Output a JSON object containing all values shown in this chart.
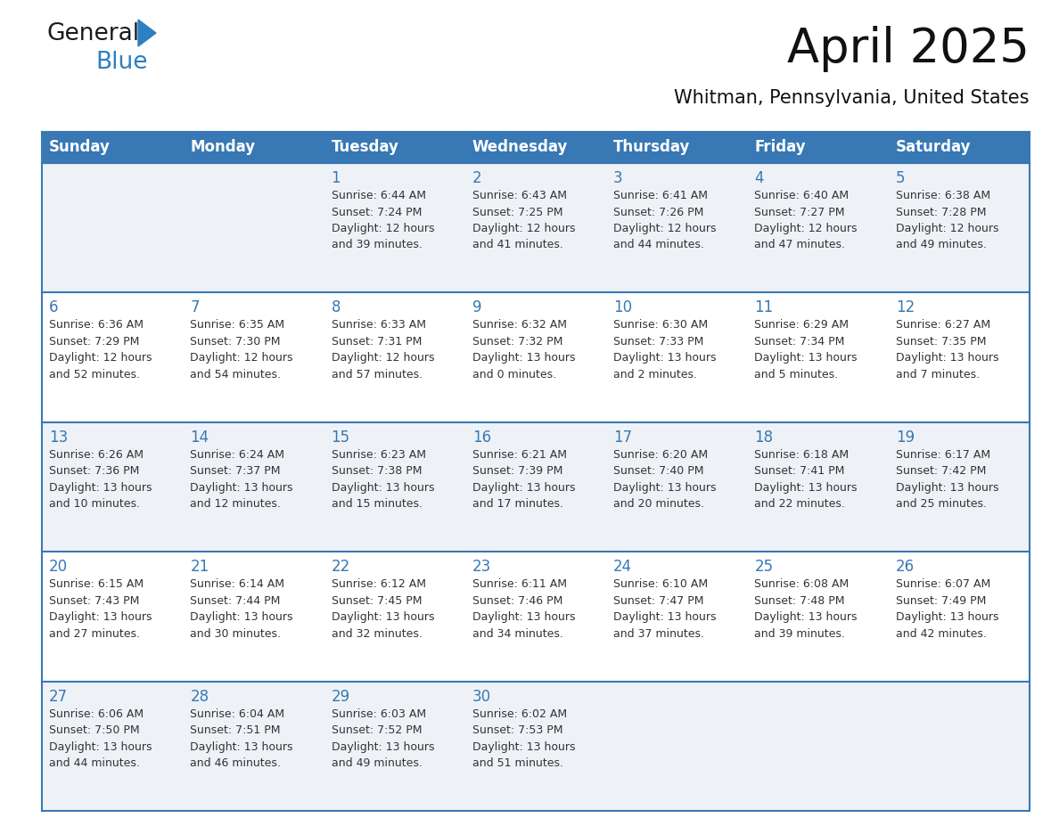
{
  "title": "April 2025",
  "subtitle": "Whitman, Pennsylvania, United States",
  "days_of_week": [
    "Sunday",
    "Monday",
    "Tuesday",
    "Wednesday",
    "Thursday",
    "Friday",
    "Saturday"
  ],
  "header_bg": "#3878b4",
  "header_text": "#ffffff",
  "row_bg_odd": "#eef2f7",
  "row_bg_even": "#ffffff",
  "border_color": "#3878b4",
  "day_number_color": "#3878b4",
  "cell_text_color": "#333333",
  "weeks": [
    [
      {
        "day": null,
        "info": null
      },
      {
        "day": null,
        "info": null
      },
      {
        "day": 1,
        "info": "Sunrise: 6:44 AM\nSunset: 7:24 PM\nDaylight: 12 hours\nand 39 minutes."
      },
      {
        "day": 2,
        "info": "Sunrise: 6:43 AM\nSunset: 7:25 PM\nDaylight: 12 hours\nand 41 minutes."
      },
      {
        "day": 3,
        "info": "Sunrise: 6:41 AM\nSunset: 7:26 PM\nDaylight: 12 hours\nand 44 minutes."
      },
      {
        "day": 4,
        "info": "Sunrise: 6:40 AM\nSunset: 7:27 PM\nDaylight: 12 hours\nand 47 minutes."
      },
      {
        "day": 5,
        "info": "Sunrise: 6:38 AM\nSunset: 7:28 PM\nDaylight: 12 hours\nand 49 minutes."
      }
    ],
    [
      {
        "day": 6,
        "info": "Sunrise: 6:36 AM\nSunset: 7:29 PM\nDaylight: 12 hours\nand 52 minutes."
      },
      {
        "day": 7,
        "info": "Sunrise: 6:35 AM\nSunset: 7:30 PM\nDaylight: 12 hours\nand 54 minutes."
      },
      {
        "day": 8,
        "info": "Sunrise: 6:33 AM\nSunset: 7:31 PM\nDaylight: 12 hours\nand 57 minutes."
      },
      {
        "day": 9,
        "info": "Sunrise: 6:32 AM\nSunset: 7:32 PM\nDaylight: 13 hours\nand 0 minutes."
      },
      {
        "day": 10,
        "info": "Sunrise: 6:30 AM\nSunset: 7:33 PM\nDaylight: 13 hours\nand 2 minutes."
      },
      {
        "day": 11,
        "info": "Sunrise: 6:29 AM\nSunset: 7:34 PM\nDaylight: 13 hours\nand 5 minutes."
      },
      {
        "day": 12,
        "info": "Sunrise: 6:27 AM\nSunset: 7:35 PM\nDaylight: 13 hours\nand 7 minutes."
      }
    ],
    [
      {
        "day": 13,
        "info": "Sunrise: 6:26 AM\nSunset: 7:36 PM\nDaylight: 13 hours\nand 10 minutes."
      },
      {
        "day": 14,
        "info": "Sunrise: 6:24 AM\nSunset: 7:37 PM\nDaylight: 13 hours\nand 12 minutes."
      },
      {
        "day": 15,
        "info": "Sunrise: 6:23 AM\nSunset: 7:38 PM\nDaylight: 13 hours\nand 15 minutes."
      },
      {
        "day": 16,
        "info": "Sunrise: 6:21 AM\nSunset: 7:39 PM\nDaylight: 13 hours\nand 17 minutes."
      },
      {
        "day": 17,
        "info": "Sunrise: 6:20 AM\nSunset: 7:40 PM\nDaylight: 13 hours\nand 20 minutes."
      },
      {
        "day": 18,
        "info": "Sunrise: 6:18 AM\nSunset: 7:41 PM\nDaylight: 13 hours\nand 22 minutes."
      },
      {
        "day": 19,
        "info": "Sunrise: 6:17 AM\nSunset: 7:42 PM\nDaylight: 13 hours\nand 25 minutes."
      }
    ],
    [
      {
        "day": 20,
        "info": "Sunrise: 6:15 AM\nSunset: 7:43 PM\nDaylight: 13 hours\nand 27 minutes."
      },
      {
        "day": 21,
        "info": "Sunrise: 6:14 AM\nSunset: 7:44 PM\nDaylight: 13 hours\nand 30 minutes."
      },
      {
        "day": 22,
        "info": "Sunrise: 6:12 AM\nSunset: 7:45 PM\nDaylight: 13 hours\nand 32 minutes."
      },
      {
        "day": 23,
        "info": "Sunrise: 6:11 AM\nSunset: 7:46 PM\nDaylight: 13 hours\nand 34 minutes."
      },
      {
        "day": 24,
        "info": "Sunrise: 6:10 AM\nSunset: 7:47 PM\nDaylight: 13 hours\nand 37 minutes."
      },
      {
        "day": 25,
        "info": "Sunrise: 6:08 AM\nSunset: 7:48 PM\nDaylight: 13 hours\nand 39 minutes."
      },
      {
        "day": 26,
        "info": "Sunrise: 6:07 AM\nSunset: 7:49 PM\nDaylight: 13 hours\nand 42 minutes."
      }
    ],
    [
      {
        "day": 27,
        "info": "Sunrise: 6:06 AM\nSunset: 7:50 PM\nDaylight: 13 hours\nand 44 minutes."
      },
      {
        "day": 28,
        "info": "Sunrise: 6:04 AM\nSunset: 7:51 PM\nDaylight: 13 hours\nand 46 minutes."
      },
      {
        "day": 29,
        "info": "Sunrise: 6:03 AM\nSunset: 7:52 PM\nDaylight: 13 hours\nand 49 minutes."
      },
      {
        "day": 30,
        "info": "Sunrise: 6:02 AM\nSunset: 7:53 PM\nDaylight: 13 hours\nand 51 minutes."
      },
      {
        "day": null,
        "info": null
      },
      {
        "day": null,
        "info": null
      },
      {
        "day": null,
        "info": null
      }
    ]
  ],
  "logo_text1": "General",
  "logo_text2": "Blue",
  "logo_text1_color": "#1a1a1a",
  "logo_text2_color": "#2c7fc0",
  "logo_triangle_color": "#2c7fc0",
  "title_fontsize": 38,
  "subtitle_fontsize": 15,
  "header_fontsize": 12,
  "day_num_fontsize": 12,
  "cell_fontsize": 9
}
